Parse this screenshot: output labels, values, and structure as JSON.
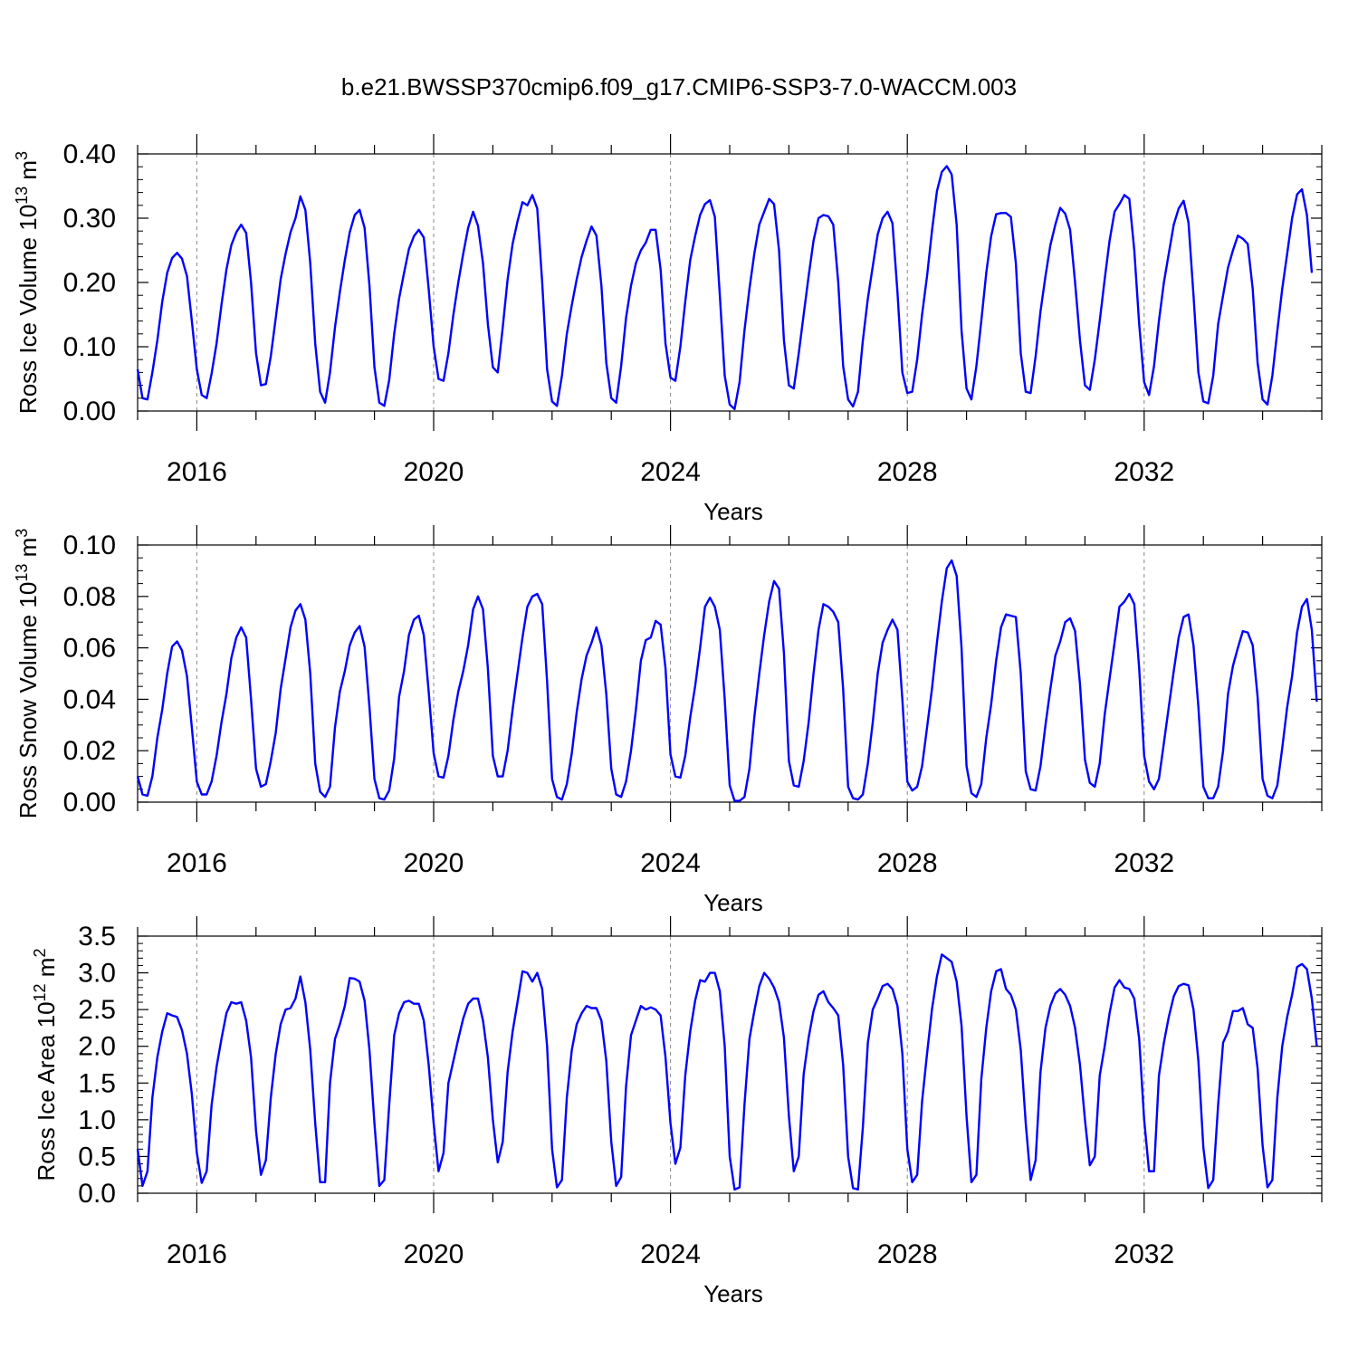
{
  "title": "b.e21.BWSSP370cmip6.f09_g17.CMIP6-SSP3-7.0-WACCM.003",
  "colors": {
    "series": "#0000ff",
    "axis": "#000000",
    "gridline": "#888888"
  },
  "chart_data": [
    {
      "type": "line",
      "ylabel": {
        "main": "Ross Ice Volume 10",
        "exp": "13",
        "unit": " m",
        "unit_exp": "3"
      },
      "xlabel": "Years",
      "xlim": [
        2015.0,
        2035.0
      ],
      "ylim": [
        0.0,
        0.4
      ],
      "xticks": [
        2016,
        2020,
        2024,
        2028,
        2032
      ],
      "yticks": [
        0.0,
        0.1,
        0.2,
        0.3,
        0.4
      ],
      "ytick_labels": [
        "0.00",
        "0.10",
        "0.20",
        "0.30",
        "0.40"
      ],
      "minor_per_major": 5,
      "x_start": 2015.0,
      "x_step": 0.08333,
      "series": [
        {
          "name": "Ross Ice Volume",
          "values": [
            0.065,
            0.02,
            0.018,
            0.06,
            0.11,
            0.17,
            0.215,
            0.238,
            0.246,
            0.237,
            0.21,
            0.14,
            0.065,
            0.025,
            0.02,
            0.058,
            0.105,
            0.165,
            0.22,
            0.258,
            0.278,
            0.29,
            0.277,
            0.2,
            0.09,
            0.04,
            0.042,
            0.085,
            0.145,
            0.205,
            0.245,
            0.278,
            0.3,
            0.334,
            0.313,
            0.23,
            0.105,
            0.03,
            0.013,
            0.06,
            0.13,
            0.185,
            0.235,
            0.278,
            0.305,
            0.313,
            0.285,
            0.195,
            0.068,
            0.013,
            0.008,
            0.048,
            0.12,
            0.175,
            0.215,
            0.252,
            0.272,
            0.282,
            0.27,
            0.19,
            0.1,
            0.05,
            0.047,
            0.09,
            0.15,
            0.2,
            0.245,
            0.285,
            0.31,
            0.288,
            0.23,
            0.135,
            0.068,
            0.06,
            0.13,
            0.205,
            0.26,
            0.295,
            0.325,
            0.32,
            0.336,
            0.315,
            0.2,
            0.065,
            0.015,
            0.008,
            0.055,
            0.12,
            0.165,
            0.205,
            0.24,
            0.265,
            0.287,
            0.273,
            0.195,
            0.075,
            0.02,
            0.013,
            0.07,
            0.145,
            0.195,
            0.23,
            0.25,
            0.262,
            0.282,
            0.282,
            0.22,
            0.105,
            0.052,
            0.047,
            0.1,
            0.17,
            0.235,
            0.272,
            0.305,
            0.322,
            0.328,
            0.302,
            0.18,
            0.055,
            0.01,
            0.003,
            0.045,
            0.125,
            0.19,
            0.245,
            0.29,
            0.31,
            0.33,
            0.322,
            0.25,
            0.11,
            0.04,
            0.035,
            0.09,
            0.15,
            0.21,
            0.265,
            0.3,
            0.305,
            0.303,
            0.29,
            0.2,
            0.07,
            0.018,
            0.007,
            0.03,
            0.11,
            0.175,
            0.225,
            0.275,
            0.3,
            0.31,
            0.292,
            0.185,
            0.06,
            0.028,
            0.03,
            0.08,
            0.15,
            0.21,
            0.28,
            0.342,
            0.372,
            0.381,
            0.368,
            0.29,
            0.125,
            0.035,
            0.018,
            0.07,
            0.14,
            0.215,
            0.272,
            0.306,
            0.308,
            0.308,
            0.302,
            0.23,
            0.09,
            0.03,
            0.028,
            0.085,
            0.155,
            0.21,
            0.258,
            0.29,
            0.316,
            0.307,
            0.282,
            0.2,
            0.11,
            0.04,
            0.033,
            0.08,
            0.14,
            0.205,
            0.265,
            0.31,
            0.322,
            0.336,
            0.33,
            0.25,
            0.135,
            0.045,
            0.025,
            0.07,
            0.14,
            0.2,
            0.245,
            0.29,
            0.315,
            0.327,
            0.293,
            0.18,
            0.06,
            0.015,
            0.012,
            0.055,
            0.135,
            0.18,
            0.223,
            0.25,
            0.273,
            0.268,
            0.26,
            0.19,
            0.075,
            0.018,
            0.01,
            0.055,
            0.125,
            0.19,
            0.245,
            0.3,
            0.337,
            0.345,
            0.305,
            0.215
          ]
        }
      ]
    },
    {
      "type": "line",
      "ylabel": {
        "main": "Ross Snow Volume 10",
        "exp": "13",
        "unit": " m",
        "unit_exp": "3"
      },
      "xlabel": "Years",
      "xlim": [
        2015.0,
        2035.0
      ],
      "ylim": [
        0.0,
        0.1
      ],
      "xticks": [
        2016,
        2020,
        2024,
        2028,
        2032
      ],
      "yticks": [
        0.0,
        0.02,
        0.04,
        0.06,
        0.08,
        0.1
      ],
      "ytick_labels": [
        "0.00",
        "0.02",
        "0.04",
        "0.06",
        "0.08",
        "0.10"
      ],
      "minor_per_major": 4,
      "x_start": 2015.0,
      "x_step": 0.08333,
      "series": [
        {
          "name": "Ross Snow Volume",
          "values": [
            0.01,
            0.003,
            0.0025,
            0.01,
            0.025,
            0.036,
            0.05,
            0.0605,
            0.0625,
            0.059,
            0.049,
            0.029,
            0.008,
            0.003,
            0.003,
            0.008,
            0.018,
            0.031,
            0.042,
            0.056,
            0.064,
            0.068,
            0.064,
            0.04,
            0.013,
            0.006,
            0.007,
            0.016,
            0.027,
            0.044,
            0.056,
            0.068,
            0.0745,
            0.077,
            0.071,
            0.05,
            0.015,
            0.004,
            0.002,
            0.006,
            0.029,
            0.043,
            0.051,
            0.061,
            0.066,
            0.0685,
            0.0605,
            0.037,
            0.009,
            0.0015,
            0.001,
            0.0045,
            0.017,
            0.041,
            0.051,
            0.065,
            0.071,
            0.0725,
            0.065,
            0.043,
            0.019,
            0.01,
            0.0095,
            0.018,
            0.032,
            0.043,
            0.051,
            0.061,
            0.075,
            0.08,
            0.075,
            0.052,
            0.018,
            0.01,
            0.01,
            0.02,
            0.036,
            0.05,
            0.064,
            0.076,
            0.08,
            0.081,
            0.077,
            0.047,
            0.009,
            0.002,
            0.001,
            0.007,
            0.019,
            0.035,
            0.048,
            0.057,
            0.062,
            0.068,
            0.061,
            0.042,
            0.013,
            0.003,
            0.002,
            0.008,
            0.02,
            0.036,
            0.055,
            0.063,
            0.064,
            0.0705,
            0.069,
            0.052,
            0.0185,
            0.01,
            0.0095,
            0.018,
            0.033,
            0.045,
            0.06,
            0.076,
            0.0795,
            0.076,
            0.067,
            0.04,
            0.0065,
            0.0005,
            0.0005,
            0.002,
            0.013,
            0.033,
            0.05,
            0.065,
            0.078,
            0.086,
            0.083,
            0.058,
            0.016,
            0.0065,
            0.006,
            0.016,
            0.031,
            0.05,
            0.067,
            0.077,
            0.076,
            0.074,
            0.07,
            0.044,
            0.006,
            0.0015,
            0.001,
            0.003,
            0.015,
            0.031,
            0.05,
            0.062,
            0.067,
            0.071,
            0.067,
            0.04,
            0.008,
            0.0045,
            0.006,
            0.014,
            0.029,
            0.044,
            0.062,
            0.078,
            0.091,
            0.094,
            0.088,
            0.06,
            0.014,
            0.0035,
            0.002,
            0.007,
            0.025,
            0.038,
            0.055,
            0.068,
            0.073,
            0.0725,
            0.072,
            0.05,
            0.012,
            0.005,
            0.0045,
            0.014,
            0.03,
            0.044,
            0.057,
            0.0625,
            0.07,
            0.0715,
            0.0665,
            0.046,
            0.0165,
            0.0075,
            0.006,
            0.015,
            0.034,
            0.048,
            0.062,
            0.076,
            0.078,
            0.081,
            0.077,
            0.052,
            0.018,
            0.008,
            0.005,
            0.009,
            0.023,
            0.037,
            0.051,
            0.064,
            0.072,
            0.073,
            0.061,
            0.037,
            0.006,
            0.0015,
            0.0015,
            0.006,
            0.02,
            0.042,
            0.053,
            0.06,
            0.0665,
            0.066,
            0.061,
            0.041,
            0.009,
            0.0025,
            0.0015,
            0.0065,
            0.021,
            0.037,
            0.049,
            0.066,
            0.076,
            0.079,
            0.067,
            0.039
          ]
        }
      ]
    },
    {
      "type": "line",
      "ylabel": {
        "main": "Ross Ice Area 10",
        "exp": "12",
        "unit": " m",
        "unit_exp": "2"
      },
      "xlabel": "Years",
      "xlim": [
        2015.0,
        2035.0
      ],
      "ylim": [
        0.0,
        3.5
      ],
      "xticks": [
        2016,
        2020,
        2024,
        2028,
        2032
      ],
      "yticks": [
        0.0,
        0.5,
        1.0,
        1.5,
        2.0,
        2.5,
        3.0,
        3.5
      ],
      "ytick_labels": [
        "0.0",
        "0.5",
        "1.0",
        "1.5",
        "2.0",
        "2.5",
        "3.0",
        "3.5"
      ],
      "minor_per_major": 5,
      "x_start": 2015.0,
      "x_step": 0.08333,
      "series": [
        {
          "name": "Ross Ice Area",
          "values": [
            0.6,
            0.1,
            0.3,
            1.3,
            1.85,
            2.2,
            2.45,
            2.42,
            2.4,
            2.22,
            1.9,
            1.35,
            0.55,
            0.14,
            0.3,
            1.2,
            1.72,
            2.1,
            2.45,
            2.6,
            2.58,
            2.6,
            2.35,
            1.85,
            0.85,
            0.25,
            0.45,
            1.3,
            1.9,
            2.3,
            2.5,
            2.52,
            2.65,
            2.95,
            2.6,
            1.95,
            0.95,
            0.15,
            0.15,
            1.5,
            2.1,
            2.3,
            2.55,
            2.93,
            2.92,
            2.88,
            2.62,
            1.95,
            0.95,
            0.1,
            0.18,
            1.2,
            2.15,
            2.45,
            2.6,
            2.62,
            2.58,
            2.58,
            2.35,
            1.75,
            0.95,
            0.3,
            0.55,
            1.5,
            1.8,
            2.1,
            2.38,
            2.58,
            2.65,
            2.65,
            2.35,
            1.85,
            1.0,
            0.42,
            0.7,
            1.65,
            2.2,
            2.6,
            3.02,
            3.0,
            2.88,
            3.0,
            2.78,
            2.0,
            0.6,
            0.08,
            0.18,
            1.3,
            1.95,
            2.3,
            2.45,
            2.55,
            2.52,
            2.52,
            2.35,
            1.8,
            0.7,
            0.1,
            0.22,
            1.45,
            2.15,
            2.35,
            2.55,
            2.5,
            2.53,
            2.5,
            2.42,
            1.85,
            0.95,
            0.4,
            0.62,
            1.6,
            2.2,
            2.62,
            2.9,
            2.88,
            3.0,
            3.0,
            2.75,
            2.0,
            0.5,
            0.05,
            0.08,
            1.2,
            2.1,
            2.48,
            2.82,
            3.0,
            2.92,
            2.8,
            2.6,
            2.12,
            1.05,
            0.3,
            0.5,
            1.62,
            2.12,
            2.48,
            2.7,
            2.75,
            2.6,
            2.52,
            2.42,
            1.75,
            0.5,
            0.07,
            0.05,
            0.9,
            2.05,
            2.5,
            2.65,
            2.82,
            2.85,
            2.78,
            2.55,
            1.9,
            0.6,
            0.15,
            0.25,
            1.25,
            1.9,
            2.5,
            2.95,
            3.25,
            3.2,
            3.15,
            2.88,
            2.28,
            1.05,
            0.15,
            0.25,
            1.55,
            2.25,
            2.75,
            3.02,
            3.05,
            2.78,
            2.7,
            2.5,
            1.95,
            0.95,
            0.18,
            0.45,
            1.65,
            2.25,
            2.55,
            2.72,
            2.78,
            2.7,
            2.55,
            2.25,
            1.75,
            1.0,
            0.38,
            0.5,
            1.6,
            2.0,
            2.45,
            2.8,
            2.9,
            2.8,
            2.78,
            2.65,
            2.1,
            1.0,
            0.3,
            0.3,
            1.6,
            2.05,
            2.4,
            2.68,
            2.82,
            2.85,
            2.83,
            2.5,
            1.8,
            0.62,
            0.07,
            0.18,
            1.2,
            2.05,
            2.2,
            2.48,
            2.48,
            2.52,
            2.3,
            2.25,
            1.7,
            0.65,
            0.08,
            0.18,
            1.3,
            2.0,
            2.4,
            2.7,
            3.08,
            3.12,
            3.05,
            2.65,
            2.0
          ]
        }
      ]
    }
  ]
}
